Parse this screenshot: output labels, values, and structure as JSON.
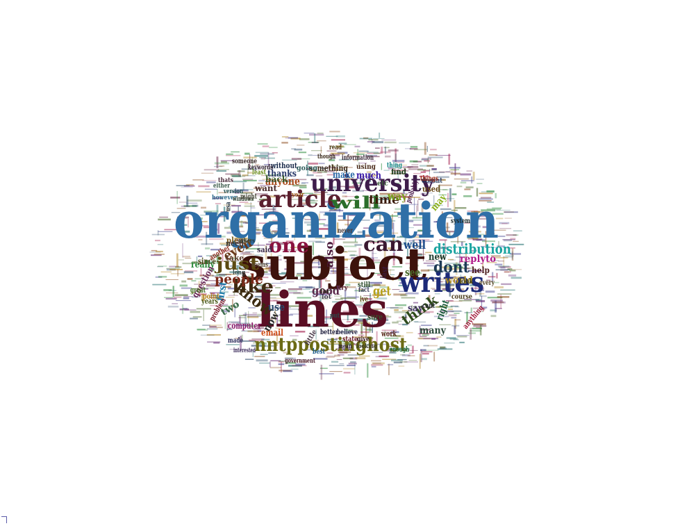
{
  "words": [
    {
      "text": "organization",
      "color": "#2f6fa7"
    },
    {
      "text": "subject",
      "color": "#3d120c"
    },
    {
      "text": "lines",
      "color": "#5a0f24"
    },
    {
      "text": "writes",
      "color": "#1c2a78"
    },
    {
      "text": "nntppostinghost",
      "color": "#6b6a14"
    },
    {
      "text": "article",
      "color": "#5b1f2e"
    },
    {
      "text": "university",
      "color": "#3e1d4a"
    },
    {
      "text": "one",
      "color": "#8a1340"
    },
    {
      "text": "can",
      "color": "#3a1830"
    },
    {
      "text": "will",
      "color": "#2b6e2a"
    },
    {
      "text": "like",
      "color": "#3f2b12"
    },
    {
      "text": "know",
      "color": "#3a2a10"
    },
    {
      "text": "just",
      "color": "#5b4a12"
    },
    {
      "text": "people",
      "color": "#7a2a1a"
    },
    {
      "text": "dont",
      "color": "#1d3a55"
    },
    {
      "text": "distribution",
      "color": "#1aa4a0"
    },
    {
      "text": "think",
      "color": "#2e4a1a"
    },
    {
      "text": "get",
      "color": "#b8a21a"
    },
    {
      "text": "also",
      "color": "#4a1a3a"
    },
    {
      "text": "time",
      "color": "#3a1a0a"
    },
    {
      "text": "well",
      "color": "#1a4a8a"
    },
    {
      "text": "good",
      "color": "#5a2a4a"
    },
    {
      "text": "even",
      "color": "#6a3a1a"
    },
    {
      "text": "use",
      "color": "#2a4a6a"
    },
    {
      "text": "anyone",
      "color": "#aa4a1a"
    },
    {
      "text": "way",
      "color": "#7aa01a"
    },
    {
      "text": "see",
      "color": "#4a6a2a"
    },
    {
      "text": "much",
      "color": "#3a1aa8"
    },
    {
      "text": "make",
      "color": "#2a6aa8"
    },
    {
      "text": "new",
      "color": "#1a3a2a"
    },
    {
      "text": "replyto",
      "color": "#b01a8a"
    },
    {
      "text": "world",
      "color": "#b0902a"
    },
    {
      "text": "now",
      "color": "#2a2a2a"
    },
    {
      "text": "say",
      "color": "#4a3a6a"
    },
    {
      "text": "right",
      "color": "#1a5a3a"
    },
    {
      "text": "may",
      "color": "#8ab01a"
    },
    {
      "text": "email",
      "color": "#d0501a"
    },
    {
      "text": "two",
      "color": "#3a6a4a"
    },
    {
      "text": "first",
      "color": "#1a7aa8"
    },
    {
      "text": "thanks",
      "color": "#2a3a6a"
    },
    {
      "text": "please",
      "color": "#7a5a1a"
    },
    {
      "text": "want",
      "color": "#4a2a2a"
    },
    {
      "text": "back",
      "color": "#3a5a2a"
    },
    {
      "text": "something",
      "color": "#3a2a1a"
    },
    {
      "text": "many",
      "color": "#2a4a3a"
    },
    {
      "text": "help",
      "color": "#4a1a1a"
    },
    {
      "text": "computer",
      "color": "#8a1a6a"
    },
    {
      "text": "really",
      "color": "#2a8a3a"
    },
    {
      "text": "question",
      "color": "#6a2a5a"
    },
    {
      "text": "since",
      "color": "#4a4a1a"
    },
    {
      "text": "need",
      "color": "#3a3a3a"
    },
    {
      "text": "take",
      "color": "#5a3a2a"
    },
    {
      "text": "said",
      "color": "#3a2a4a"
    },
    {
      "text": "used",
      "color": "#6a4a1a"
    },
    {
      "text": "without",
      "color": "#1a2a4a"
    },
    {
      "text": "going",
      "color": "#2a5a5a"
    },
    {
      "text": "using",
      "color": "#4a2a1a"
    },
    {
      "text": "find",
      "color": "#1a3a1a"
    },
    {
      "text": "information",
      "color": "#3a2a3a"
    },
    {
      "text": "doesnt",
      "color": "#2a3a5a"
    },
    {
      "text": "course",
      "color": "#4a3a1a"
    },
    {
      "text": "sure",
      "color": "#3a4a2a"
    },
    {
      "text": "work",
      "color": "#5a2a1a"
    },
    {
      "text": "better",
      "color": "#1a1a3a"
    },
    {
      "text": "believe",
      "color": "#2a2a4a"
    },
    {
      "text": "last",
      "color": "#3a1a3a"
    },
    {
      "text": "problem",
      "color": "#7a1a2a"
    },
    {
      "text": "years",
      "color": "#4a5a1a"
    },
    {
      "text": "point",
      "color": "#b0801a"
    },
    {
      "text": "great",
      "color": "#3a6a1a"
    },
    {
      "text": "made",
      "color": "#2a2a5a"
    },
    {
      "text": "look",
      "color": "#3a3a1a"
    },
    {
      "text": "every",
      "color": "#5a4a2a"
    },
    {
      "text": "anything",
      "color": "#a01a3a"
    },
    {
      "text": "keywords",
      "color": "#2a1a2a"
    },
    {
      "text": "someone",
      "color": "#3a2a2a"
    },
    {
      "text": "however",
      "color": "#2a6a8a"
    },
    {
      "text": "version",
      "color": "#1a4a4a"
    },
    {
      "text": "windows",
      "color": "#2a3a2a"
    },
    {
      "text": "thats",
      "color": "#4a2a3a"
    },
    {
      "text": "least",
      "color": "#6a8a1a"
    },
    {
      "text": "read",
      "color": "#5a3a1a"
    },
    {
      "text": "though",
      "color": "#3a2a1a"
    },
    {
      "text": "system",
      "color": "#1a2a2a"
    },
    {
      "text": "probably",
      "color": "#4a1a4a"
    },
    {
      "text": "things",
      "color": "#a0301a"
    },
    {
      "text": "thing",
      "color": "#1a8a8a"
    },
    {
      "text": "etc",
      "color": "#3a5a3a"
    },
    {
      "text": "never",
      "color": "#4a3a3a"
    },
    {
      "text": "still",
      "color": "#2a4a2a"
    },
    {
      "text": "fact",
      "color": "#3a3a5a"
    },
    {
      "text": "ive",
      "color": "#5a5a1a"
    },
    {
      "text": "cant",
      "color": "#2a2a3a"
    },
    {
      "text": "long",
      "color": "#3a4a4a"
    },
    {
      "text": "might",
      "color": "#4a4a3a"
    },
    {
      "text": "usa",
      "color": "#2a3a4a"
    },
    {
      "text": "state",
      "color": "#6a1a2a"
    },
    {
      "text": "give",
      "color": "#3a1a1a"
    },
    {
      "text": "mean",
      "color": "#2a1a3a"
    },
    {
      "text": "looking",
      "color": "#3a3a2a"
    },
    {
      "text": "enough",
      "color": "#1a6a3a"
    },
    {
      "text": "seems",
      "color": "#5a4a3a"
    },
    {
      "text": "interested",
      "color": "#3a2a5a"
    },
    {
      "text": "another",
      "color": "#8a2a1a"
    },
    {
      "text": "government",
      "color": "#4a1a2a"
    },
    {
      "text": "best",
      "color": "#1a5a8a"
    },
    {
      "text": "far",
      "color": "#2a2a1a"
    },
    {
      "text": "lot",
      "color": "#3a3a4a"
    },
    {
      "text": "try",
      "color": "#5a2a3a"
    },
    {
      "text": "put",
      "color": "#2a4a4a"
    },
    {
      "text": "little",
      "color": "#4a3a4a"
    },
    {
      "text": "year",
      "color": "#a05a1a"
    },
    {
      "text": "either",
      "color": "#3a5a4a"
    },
    {
      "text": "others",
      "color": "#2a3a3a"
    }
  ],
  "corner_icon": "corner-bracket-icon"
}
